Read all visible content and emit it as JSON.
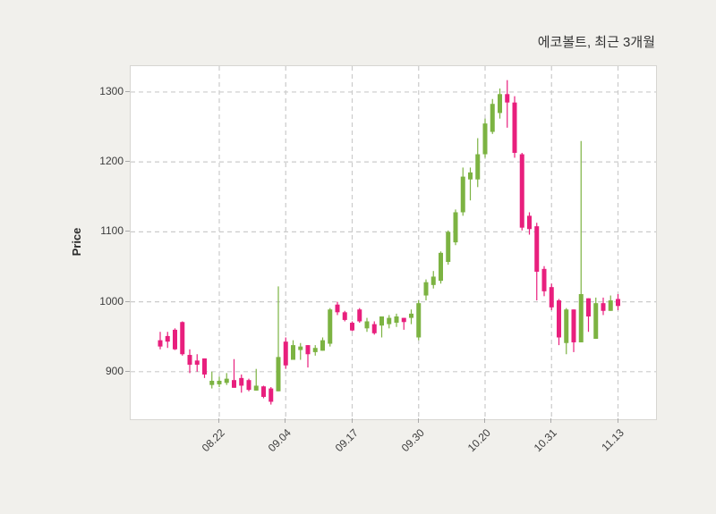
{
  "title": "에코볼트, 최근 3개월",
  "chart_data": {
    "type": "candlestick",
    "title": "에코볼트, 최근 3개월",
    "ylabel": "Price",
    "grid": true,
    "legend": "none",
    "ylim": [
      832,
      1337
    ],
    "y_ticks": [
      900,
      1000,
      1100,
      1200,
      1300
    ],
    "x_tick_labels": [
      "08.22",
      "09.04",
      "09.17",
      "09.30",
      "10.20",
      "10.31",
      "11.13"
    ],
    "x_tick_indices": [
      8,
      17,
      26,
      35,
      44,
      53,
      62
    ],
    "up_color": "#7cb342",
    "down_color": "#e81f7d",
    "grid_color": "#cbcbcb",
    "candles_ohlc": [
      [
        945,
        957,
        932,
        936
      ],
      [
        951,
        957,
        934,
        943
      ],
      [
        960,
        962,
        931,
        932
      ],
      [
        971,
        972,
        923,
        925
      ],
      [
        924,
        932,
        898,
        910
      ],
      [
        916,
        925,
        900,
        910
      ],
      [
        919,
        919,
        891,
        896
      ],
      [
        881,
        900,
        876,
        887
      ],
      [
        882,
        893,
        878,
        887
      ],
      [
        884,
        898,
        881,
        890
      ],
      [
        888,
        918,
        877,
        877
      ],
      [
        891,
        896,
        870,
        880
      ],
      [
        888,
        890,
        872,
        874
      ],
      [
        873,
        904,
        873,
        880
      ],
      [
        879,
        880,
        862,
        864
      ],
      [
        876,
        878,
        853,
        857
      ],
      [
        872,
        1022,
        872,
        921
      ],
      [
        943,
        949,
        904,
        909
      ],
      [
        917,
        945,
        917,
        938
      ],
      [
        931,
        941,
        917,
        936
      ],
      [
        938,
        938,
        906,
        925
      ],
      [
        928,
        938,
        923,
        934
      ],
      [
        930,
        949,
        930,
        945
      ],
      [
        940,
        991,
        936,
        989
      ],
      [
        996,
        1000,
        981,
        985
      ],
      [
        985,
        987,
        972,
        974
      ],
      [
        970,
        972,
        958,
        959
      ],
      [
        989,
        991,
        970,
        972
      ],
      [
        962,
        977,
        957,
        972
      ],
      [
        968,
        972,
        953,
        955
      ],
      [
        966,
        979,
        949,
        979
      ],
      [
        968,
        981,
        962,
        977
      ],
      [
        970,
        983,
        964,
        979
      ],
      [
        977,
        977,
        960,
        971
      ],
      [
        977,
        989,
        968,
        983
      ],
      [
        949,
        1002,
        945,
        998
      ],
      [
        1009,
        1032,
        1002,
        1028
      ],
      [
        1024,
        1044,
        1019,
        1036
      ],
      [
        1030,
        1072,
        1026,
        1070
      ],
      [
        1057,
        1102,
        1053,
        1100
      ],
      [
        1085,
        1132,
        1081,
        1128
      ],
      [
        1128,
        1192,
        1123,
        1179
      ],
      [
        1175,
        1192,
        1145,
        1185
      ],
      [
        1175,
        1234,
        1164,
        1211
      ],
      [
        1211,
        1262,
        1206,
        1255
      ],
      [
        1243,
        1290,
        1240,
        1283
      ],
      [
        1270,
        1305,
        1262,
        1297
      ],
      [
        1297,
        1317,
        1249,
        1285
      ],
      [
        1285,
        1294,
        1206,
        1213
      ],
      [
        1211,
        1213,
        1102,
        1106
      ],
      [
        1123,
        1128,
        1096,
        1104
      ],
      [
        1108,
        1113,
        1002,
        1043
      ],
      [
        1047,
        1051,
        1008,
        1015
      ],
      [
        1021,
        1026,
        988,
        992
      ],
      [
        1002,
        1004,
        938,
        949
      ],
      [
        941,
        991,
        925,
        989
      ],
      [
        989,
        989,
        928,
        942
      ],
      [
        942,
        1230,
        942,
        1011
      ],
      [
        1005,
        1005,
        957,
        979
      ],
      [
        947,
        1006,
        947,
        998
      ],
      [
        998,
        1006,
        981,
        987
      ],
      [
        987,
        1009,
        987,
        1002
      ],
      [
        1004,
        1011,
        988,
        994
      ]
    ]
  }
}
